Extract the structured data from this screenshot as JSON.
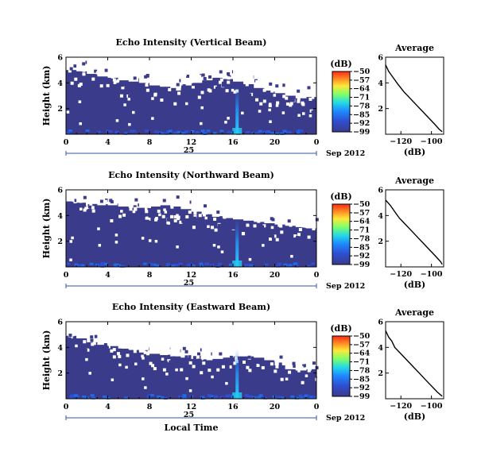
{
  "chart_data": [
    {
      "type": "heatmap",
      "title": "Echo Intensity (Vertical Beam)",
      "xlabel": "",
      "ylabel": "Height (km)",
      "xlim": [
        0,
        24
      ],
      "ylim": [
        0,
        6
      ],
      "x_ticks": [
        "0",
        "4",
        "8",
        "12",
        "16",
        "20",
        "0"
      ],
      "y_ticks": [
        "6",
        "4",
        "2"
      ],
      "date_day": "25",
      "date_month": "Sep 2012",
      "colorbar": {
        "unit": "(dB)",
        "ticks": [
          "−50",
          "−57",
          "−64",
          "−71",
          "−78",
          "−85",
          "−92",
          "−99"
        ]
      },
      "cloud_top_km": [
        5.0,
        4.9,
        4.7,
        4.5,
        4.4,
        4.2,
        4.1,
        4.0,
        3.8,
        3.7,
        3.6,
        3.8,
        4.0,
        4.2,
        4.4,
        4.3,
        4.1,
        3.9,
        3.6,
        3.4,
        3.2,
        3.0,
        2.8,
        2.9
      ],
      "profile": {
        "title": "Average",
        "xlabel": "(dB)",
        "x_ticks": [
          "−120",
          "−100"
        ],
        "y_ticks": [
          "6",
          "4",
          "2"
        ],
        "xlim": [
          -130,
          -92
        ],
        "ylim": [
          0,
          6
        ],
        "x": [
          -130,
          -128,
          -125,
          -122,
          -118,
          -114,
          -110,
          -106,
          -102,
          -98,
          -95,
          -93
        ],
        "y": [
          5.4,
          4.9,
          4.4,
          3.9,
          3.3,
          2.8,
          2.3,
          1.8,
          1.3,
          0.8,
          0.4,
          0.2
        ]
      }
    },
    {
      "type": "heatmap",
      "title": "Echo Intensity (Northward Beam)",
      "xlabel": "",
      "ylabel": "Height (km)",
      "xlim": [
        0,
        24
      ],
      "ylim": [
        0,
        6
      ],
      "x_ticks": [
        "0",
        "4",
        "8",
        "12",
        "16",
        "20",
        "0"
      ],
      "y_ticks": [
        "6",
        "4",
        "2"
      ],
      "date_day": "25",
      "date_month": "Sep 2012",
      "colorbar": {
        "unit": "(dB)",
        "ticks": [
          "−50",
          "−57",
          "−64",
          "−71",
          "−78",
          "−85",
          "−92",
          "−99"
        ]
      },
      "cloud_top_km": [
        5.1,
        5.0,
        4.9,
        4.8,
        4.8,
        4.7,
        4.6,
        4.6,
        4.7,
        4.8,
        4.7,
        4.5,
        4.3,
        4.1,
        3.9,
        3.8,
        3.7,
        3.6,
        3.5,
        3.4,
        3.3,
        3.2,
        3.1,
        3.0
      ],
      "profile": {
        "title": "Average",
        "xlabel": "(dB)",
        "x_ticks": [
          "−120",
          "−100"
        ],
        "y_ticks": [
          "6",
          "4",
          "2"
        ],
        "xlim": [
          -130,
          -92
        ],
        "ylim": [
          0,
          6
        ],
        "x": [
          -130,
          -127,
          -124,
          -121,
          -117,
          -113,
          -109,
          -105,
          -101,
          -97,
          -94,
          -93
        ],
        "y": [
          5.2,
          4.8,
          4.3,
          3.8,
          3.3,
          2.8,
          2.3,
          1.8,
          1.3,
          0.8,
          0.4,
          0.2
        ]
      }
    },
    {
      "type": "heatmap",
      "title": "Echo Intensity (Eastward Beam)",
      "xlabel": "Local Time",
      "ylabel": "Height (km)",
      "xlim": [
        0,
        24
      ],
      "ylim": [
        0,
        6
      ],
      "x_ticks": [
        "0",
        "4",
        "8",
        "12",
        "16",
        "20",
        "0"
      ],
      "y_ticks": [
        "6",
        "4",
        "2"
      ],
      "date_day": "25",
      "date_month": "Sep 2012",
      "colorbar": {
        "unit": "(dB)",
        "ticks": [
          "−50",
          "−57",
          "−64",
          "−71",
          "−78",
          "−85",
          "−92",
          "−99"
        ]
      },
      "cloud_top_km": [
        4.9,
        4.7,
        4.4,
        4.2,
        4.1,
        3.9,
        3.8,
        3.6,
        3.5,
        3.4,
        3.3,
        3.2,
        3.1,
        3.0,
        3.1,
        3.2,
        3.3,
        3.3,
        3.2,
        3.0,
        2.6,
        2.3,
        2.2,
        2.3
      ],
      "profile": {
        "title": "Average",
        "xlabel": "(dB)",
        "x_ticks": [
          "−120",
          "−100"
        ],
        "y_ticks": [
          "6",
          "4",
          "2"
        ],
        "xlim": [
          -130,
          -92
        ],
        "ylim": [
          0,
          6
        ],
        "x": [
          -130,
          -128,
          -126,
          -124,
          -120,
          -116,
          -112,
          -108,
          -104,
          -100,
          -96,
          -93
        ],
        "y": [
          5.3,
          4.8,
          4.5,
          4.0,
          3.5,
          3.0,
          2.5,
          2.0,
          1.5,
          1.0,
          0.5,
          0.2
        ]
      }
    }
  ]
}
